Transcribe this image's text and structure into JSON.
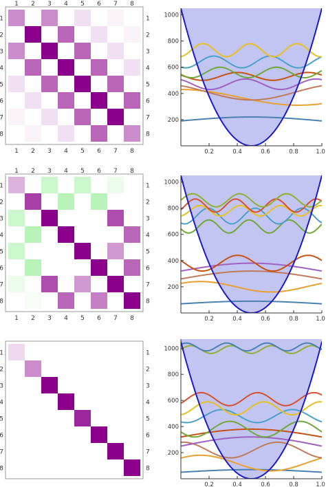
{
  "colors": {
    "purple_full": "#8b008b",
    "green_full": "#33dd33",
    "well_fill": "#aeb0ee",
    "well_line": "#1a1acc",
    "frame": "#999999",
    "grid_line": "#cccccc",
    "series": [
      "#4a80b0",
      "#e8a030",
      "#c07a5a",
      "#a060c0",
      "#c85010",
      "#70a838",
      "#4aa0c8",
      "#e8c020",
      "#d85030",
      "#8fb030"
    ]
  },
  "chart_data": [
    {
      "type": "heatmap",
      "panel": "top-left",
      "row_labels": [
        "1",
        "2",
        "3",
        "4",
        "5",
        "6",
        "7",
        "8"
      ],
      "col_labels": [
        "1",
        "2",
        "3",
        "4",
        "5",
        "6",
        "7",
        "8"
      ],
      "values": [
        [
          0.45,
          0,
          0.45,
          0,
          0.12,
          0,
          0.05,
          0
        ],
        [
          0,
          1,
          0,
          0.6,
          0,
          0.12,
          0,
          0.05
        ],
        [
          0.45,
          0,
          1,
          0,
          0.6,
          0,
          0.12,
          0
        ],
        [
          0,
          0.6,
          0,
          1,
          0,
          0.6,
          0,
          0.12
        ],
        [
          0.12,
          0,
          0.6,
          0,
          1,
          0,
          0.6,
          0
        ],
        [
          0,
          0.12,
          0,
          0.6,
          0,
          1,
          0,
          0.6
        ],
        [
          0.05,
          0,
          0.12,
          0,
          0.6,
          0,
          1,
          0
        ],
        [
          0,
          0.05,
          0,
          0.12,
          0,
          0.6,
          0,
          0.45
        ]
      ]
    },
    {
      "type": "line",
      "panel": "top-right",
      "x_ticks": [
        "0.2",
        "0.4",
        "0.6",
        "0.8",
        "1.0"
      ],
      "y_ticks": [
        "200",
        "400",
        "600",
        "800",
        "1000"
      ],
      "ylim": [
        0,
        1050
      ],
      "xlim": [
        0,
        1
      ],
      "well": {
        "min": 0,
        "edge": 4200
      },
      "series": [
        {
          "base": 190,
          "amp": 30,
          "freq": 0.5,
          "shape": "arch"
        },
        {
          "base": 370,
          "amp": 60,
          "freq": 1,
          "shape": "tilt"
        },
        {
          "base": 410,
          "amp": 60,
          "freq": 1.5,
          "shape": "tilt2"
        },
        {
          "base": 470,
          "amp": 40,
          "freq": 2,
          "shape": "wave"
        },
        {
          "base": 530,
          "amp": 30,
          "freq": 2,
          "shape": "wave"
        },
        {
          "base": 560,
          "amp": 40,
          "freq": 2.5,
          "shape": "wave"
        },
        {
          "base": 640,
          "amp": 45,
          "freq": 2.5,
          "shape": "wave"
        },
        {
          "base": 730,
          "amp": 50,
          "freq": 3,
          "shape": "wave"
        }
      ]
    },
    {
      "type": "heatmap",
      "panel": "middle-left",
      "row_labels": [
        "1",
        "2",
        "3",
        "4",
        "5",
        "6",
        "7",
        "8"
      ],
      "col_labels": [
        "1",
        "2",
        "3",
        "4",
        "5",
        "6",
        "7",
        "8"
      ],
      "values": [
        [
          0.3,
          0,
          -0.25,
          0,
          -0.25,
          0,
          -0.1,
          0
        ],
        [
          0,
          0.75,
          0,
          -0.35,
          0,
          -0.35,
          0,
          0
        ],
        [
          -0.25,
          0,
          1,
          0,
          0,
          0,
          0.7,
          0
        ],
        [
          0,
          -0.35,
          0,
          1,
          0,
          0,
          0,
          0.6
        ],
        [
          -0.25,
          0,
          0,
          0,
          1,
          0,
          0.4,
          0
        ],
        [
          0,
          -0.35,
          0,
          0,
          0,
          1,
          0,
          0.6
        ],
        [
          -0.1,
          0,
          0.7,
          0,
          0.4,
          0,
          1,
          0
        ],
        [
          0,
          -0.05,
          0,
          0.6,
          0,
          0.5,
          0,
          1
        ]
      ]
    },
    {
      "type": "line",
      "panel": "middle-right",
      "x_ticks": [
        "0.2",
        "0.4",
        "0.6",
        "0.8",
        "1.0"
      ],
      "y_ticks": [
        "200",
        "400",
        "600",
        "800",
        "1000"
      ],
      "ylim": [
        0,
        1050
      ],
      "xlim": [
        0,
        1
      ],
      "well": {
        "min": 0,
        "edge": 4200
      },
      "series": [
        {
          "base": 70,
          "amp": 20,
          "freq": 0.5,
          "shape": "arch"
        },
        {
          "base": 200,
          "amp": 40,
          "freq": 1,
          "shape": "wave"
        },
        {
          "base": 260,
          "amp": 60,
          "freq": 1,
          "shape": "arch"
        },
        {
          "base": 320,
          "amp": 60,
          "freq": 1.5,
          "shape": "arch"
        },
        {
          "base": 380,
          "amp": 60,
          "freq": 2,
          "shape": "wave"
        },
        {
          "base": 660,
          "amp": 50,
          "freq": 3.5,
          "shape": "wave"
        },
        {
          "base": 740,
          "amp": 60,
          "freq": 3,
          "shape": "wave"
        },
        {
          "base": 780,
          "amp": 40,
          "freq": 3.5,
          "shape": "wave"
        },
        {
          "base": 820,
          "amp": 50,
          "freq": 3.5,
          "shape": "wave"
        },
        {
          "base": 860,
          "amp": 50,
          "freq": 3,
          "shape": "wave"
        }
      ]
    },
    {
      "type": "heatmap",
      "panel": "bottom-left",
      "row_labels": [
        "1",
        "2",
        "3",
        "4",
        "5",
        "6",
        "7",
        "8"
      ],
      "col_labels": [],
      "values": [
        [
          0.15,
          0,
          0,
          0,
          0,
          0,
          0,
          0
        ],
        [
          0,
          0.45,
          0,
          0,
          0,
          0,
          0,
          0
        ],
        [
          0,
          0,
          1,
          0,
          0,
          0,
          0,
          0
        ],
        [
          0,
          0,
          0,
          1,
          0,
          0,
          0,
          0
        ],
        [
          0,
          0,
          0,
          0,
          0.85,
          0,
          0,
          0
        ],
        [
          0,
          0,
          0,
          0,
          0,
          1,
          0,
          0
        ],
        [
          0,
          0,
          0,
          0,
          0,
          0,
          1,
          0
        ],
        [
          0,
          0,
          0,
          0,
          0,
          0,
          0,
          1
        ]
      ]
    },
    {
      "type": "line",
      "panel": "bottom-right",
      "x_ticks": [
        "0.2",
        "0.4",
        "0.6",
        "0.8",
        "1.0"
      ],
      "y_ticks": [
        "200",
        "400",
        "600",
        "800",
        "1000"
      ],
      "ylim": [
        0,
        1070
      ],
      "xlim": [
        0,
        1
      ],
      "well": {
        "min": 0,
        "edge": 4200
      },
      "series": [
        {
          "base": 50,
          "amp": 20,
          "freq": 0.5,
          "shape": "arch"
        },
        {
          "base": 120,
          "amp": 60,
          "freq": 1,
          "shape": "wave"
        },
        {
          "base": 220,
          "amp": 60,
          "freq": 1.5,
          "shape": "wave"
        },
        {
          "base": 250,
          "amp": 70,
          "freq": 1,
          "shape": "arch"
        },
        {
          "base": 320,
          "amp": 60,
          "freq": 1.5,
          "shape": "arch"
        },
        {
          "base": 380,
          "amp": 60,
          "freq": 2,
          "shape": "wave"
        },
        {
          "base": 480,
          "amp": 50,
          "freq": 2,
          "shape": "wave"
        },
        {
          "base": 540,
          "amp": 50,
          "freq": 2.5,
          "shape": "wave"
        },
        {
          "base": 610,
          "amp": 50,
          "freq": 2.5,
          "shape": "wave"
        },
        {
          "base": 990,
          "amp": 30,
          "freq": 3.5,
          "shape": "wave"
        },
        {
          "base": 1010,
          "amp": 30,
          "freq": 3.5,
          "shape": "wave"
        }
      ]
    }
  ]
}
